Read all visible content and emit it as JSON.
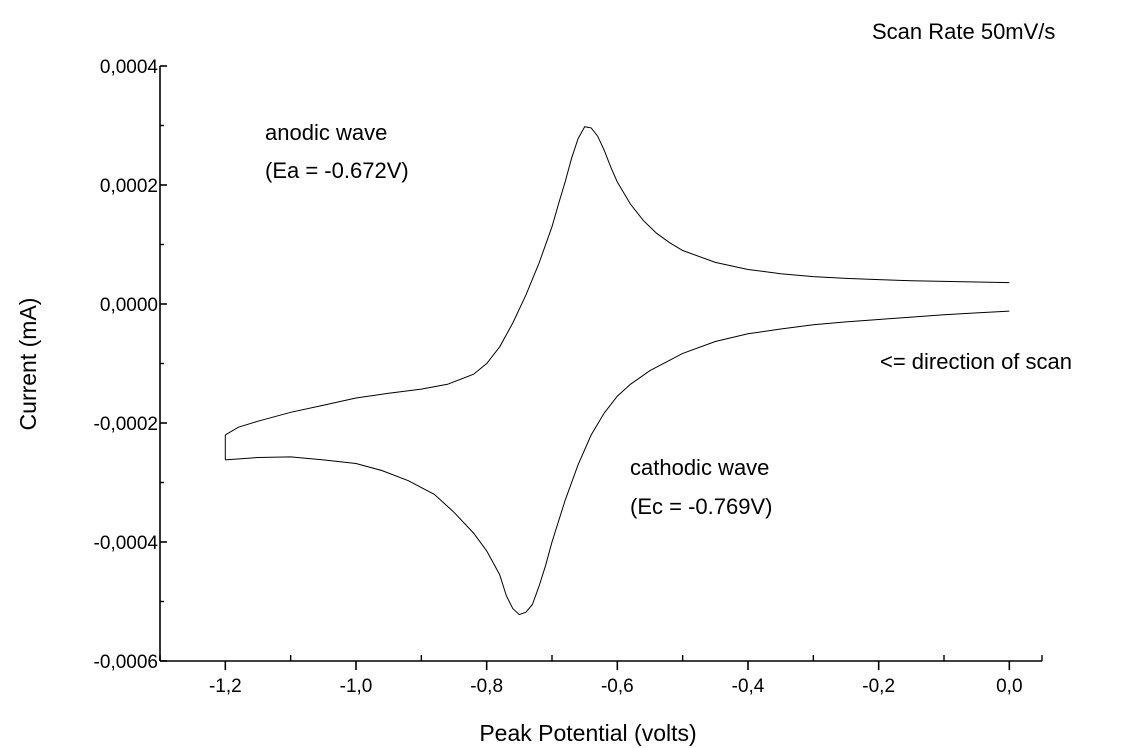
{
  "chart_data": {
    "type": "line",
    "title": "",
    "subtitle": "Scan Rate 50mV/s",
    "xlabel": "Peak Potential (volts)",
    "ylabel": "Current (mA)",
    "xlim": [
      -1.3,
      0.05
    ],
    "ylim": [
      -0.0006,
      0.0004
    ],
    "xticks": [
      -1.2,
      -1.0,
      -0.8,
      -0.6,
      -0.4,
      -0.2,
      0.0
    ],
    "xtick_labels": [
      "-1,2",
      "-1,0",
      "-0,8",
      "-0,6",
      "-0,4",
      "-0,2",
      "0,0"
    ],
    "yticks": [
      0.0004,
      0.0002,
      0.0,
      -0.0002,
      -0.0004,
      -0.0006
    ],
    "ytick_labels": [
      "0,0004",
      "0,0002",
      "0,0000",
      "-0,0002",
      "-0,0004",
      "-0,0006"
    ],
    "grid": false,
    "annotations": [
      {
        "text": "anodic wave",
        "near": "anodic peak"
      },
      {
        "text": "(Ea = -0.672V)",
        "near": "anodic peak"
      },
      {
        "text": "cathodic wave",
        "near": "cathodic peak"
      },
      {
        "text": "(Ec = -0.769V)",
        "near": "cathodic peak"
      },
      {
        "text": "<= direction of scan",
        "near": "right end"
      }
    ],
    "series": [
      {
        "upper_branch": {
          "x": [
            -1.2,
            -1.18,
            -1.15,
            -1.1,
            -1.05,
            -1.0,
            -0.95,
            -0.9,
            -0.86,
            -0.82,
            -0.8,
            -0.78,
            -0.76,
            -0.74,
            -0.72,
            -0.7,
            -0.69,
            -0.68,
            -0.67,
            -0.66,
            -0.65,
            -0.64,
            -0.63,
            -0.62,
            -0.61,
            -0.6,
            -0.58,
            -0.56,
            -0.54,
            -0.52,
            -0.5,
            -0.45,
            -0.4,
            -0.35,
            -0.3,
            -0.25,
            -0.2,
            -0.15,
            -0.1,
            -0.05,
            0.0
          ],
          "values": [
            -0.00022,
            -0.000207,
            -0.000197,
            -0.000182,
            -0.00017,
            -0.000158,
            -0.00015,
            -0.000143,
            -0.000135,
            -0.000118,
            -0.0001,
            -7.2e-05,
            -3.2e-05,
            1.5e-05,
            6.8e-05,
            0.00013,
            0.000168,
            0.000205,
            0.000245,
            0.000278,
            0.000298,
            0.000296,
            0.000282,
            0.000258,
            0.00023,
            0.000205,
            0.000168,
            0.00014,
            0.000119,
            0.000103,
            9e-05,
            7e-05,
            5.8e-05,
            5.1e-05,
            4.6e-05,
            4.3e-05,
            4.1e-05,
            3.9e-05,
            3.8e-05,
            3.7e-05,
            3.6e-05
          ]
        },
        "lower_branch": {
          "x": [
            0.0,
            -0.05,
            -0.1,
            -0.15,
            -0.2,
            -0.25,
            -0.3,
            -0.35,
            -0.4,
            -0.45,
            -0.5,
            -0.55,
            -0.58,
            -0.6,
            -0.62,
            -0.64,
            -0.66,
            -0.68,
            -0.7,
            -0.71,
            -0.72,
            -0.73,
            -0.74,
            -0.75,
            -0.76,
            -0.77,
            -0.78,
            -0.8,
            -0.82,
            -0.85,
            -0.88,
            -0.92,
            -0.96,
            -1.0,
            -1.05,
            -1.1,
            -1.15,
            -1.2
          ],
          "values": [
            -1.2e-05,
            -1.5e-05,
            -1.8e-05,
            -2.2e-05,
            -2.6e-05,
            -3e-05,
            -3.5e-05,
            -4.2e-05,
            -5e-05,
            -6.3e-05,
            -8.3e-05,
            -0.000112,
            -0.000135,
            -0.000155,
            -0.000183,
            -0.00022,
            -0.00027,
            -0.00033,
            -0.0004,
            -0.00044,
            -0.000475,
            -0.000505,
            -0.000518,
            -0.000522,
            -0.000512,
            -0.00049,
            -0.000455,
            -0.000415,
            -0.000385,
            -0.00035,
            -0.00032,
            -0.000297,
            -0.00028,
            -0.000268,
            -0.000262,
            -0.000257,
            -0.000258,
            -0.000262
          ]
        }
      }
    ]
  }
}
